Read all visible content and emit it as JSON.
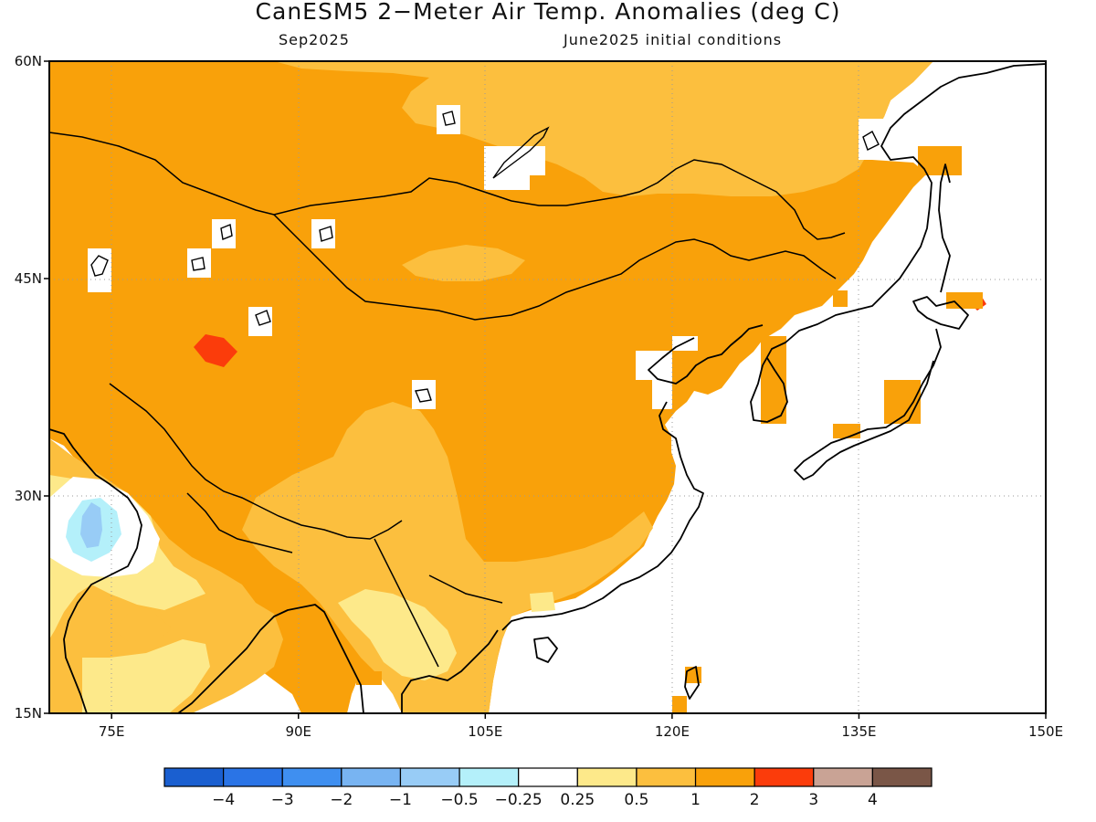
{
  "title": "CanESM5 2−Meter Air Temp. Anomalies (deg C)",
  "subtitle_left": "Sep2025",
  "subtitle_right": "June2025 initial conditions",
  "map": {
    "lon_range": [
      70,
      150
    ],
    "lat_range": [
      15,
      60
    ],
    "lat_ticks": [
      {
        "value": 60,
        "label": "60N"
      },
      {
        "value": 45,
        "label": "45N"
      },
      {
        "value": 30,
        "label": "30N"
      },
      {
        "value": 15,
        "label": "15N"
      }
    ],
    "lon_ticks": [
      {
        "value": 75,
        "label": "75E"
      },
      {
        "value": 90,
        "label": "90E"
      },
      {
        "value": 105,
        "label": "105E"
      },
      {
        "value": 120,
        "label": "120E"
      },
      {
        "value": 135,
        "label": "135E"
      },
      {
        "value": 150,
        "label": "150E"
      }
    ],
    "gridlines": "dotted"
  },
  "colorbar": {
    "colors": [
      "#1a5fd0",
      "#2a74e6",
      "#3f8ff0",
      "#78b4f2",
      "#98ccf6",
      "#b4f0fa",
      "#ffffff",
      "#fde98a",
      "#fcbf3e",
      "#f9a10a",
      "#fb3c0b",
      "#c9a395",
      "#7a5647"
    ],
    "labels": [
      "−4",
      "−3",
      "−2",
      "−1",
      "−0.5",
      "−0.25",
      "0.25",
      "0.5",
      "1",
      "2",
      "3",
      "4"
    ]
  }
}
